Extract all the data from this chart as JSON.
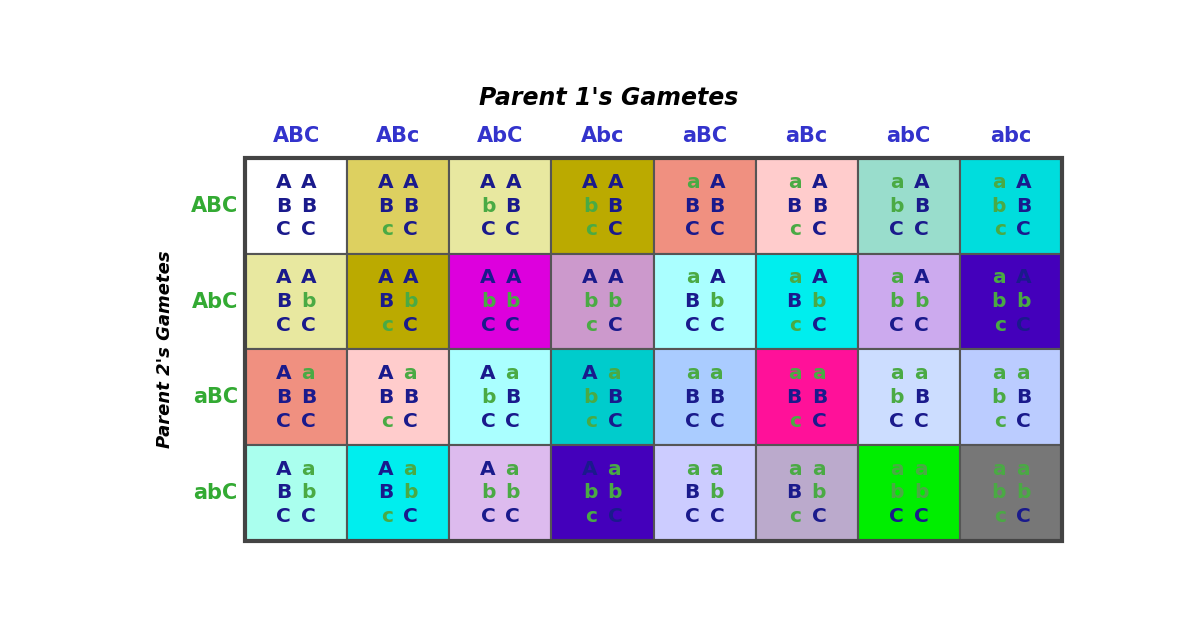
{
  "title": "Parent 1's Gametes",
  "ylabel": "Parent 2's Gametes",
  "col_labels": [
    "ABC",
    "ABc",
    "AbC",
    "Abc",
    "aBC",
    "aBc",
    "abC",
    "abc"
  ],
  "row_labels": [
    "ABC",
    "AbC",
    "aBC",
    "abC"
  ],
  "col_label_color": "#3333cc",
  "row_label_color": "#33aa33",
  "cell_bg_colors": [
    [
      "#ffffff",
      "#ddd060",
      "#e8e8a0",
      "#bbaa00",
      "#f09080",
      "#ffcccc",
      "#99ddcc",
      "#00dddd"
    ],
    [
      "#e8e8a0",
      "#bbaa00",
      "#dd00dd",
      "#cc99cc",
      "#aaffff",
      "#00eeee",
      "#ccaaee",
      "#4400bb"
    ],
    [
      "#f09080",
      "#ffcccc",
      "#aaffff",
      "#00cccc",
      "#aaccff",
      "#ff1199",
      "#ccddff",
      "#bbccff"
    ],
    [
      "#aaffee",
      "#00eeee",
      "#ddbbee",
      "#4400bb",
      "#ccccff",
      "#bbaacc",
      "#00ee00",
      "#777777"
    ]
  ],
  "cells": [
    [
      [
        [
          "A",
          "A"
        ],
        [
          "B",
          "B"
        ],
        [
          "C",
          "C"
        ]
      ],
      [
        [
          "A",
          "A"
        ],
        [
          "B",
          "B"
        ],
        [
          "c",
          "C"
        ]
      ],
      [
        [
          "A",
          "A"
        ],
        [
          "b",
          "B"
        ],
        [
          "C",
          "C"
        ]
      ],
      [
        [
          "A",
          "A"
        ],
        [
          "b",
          "B"
        ],
        [
          "c",
          "C"
        ]
      ],
      [
        [
          "a",
          "A"
        ],
        [
          "B",
          "B"
        ],
        [
          "C",
          "C"
        ]
      ],
      [
        [
          "a",
          "A"
        ],
        [
          "B",
          "B"
        ],
        [
          "c",
          "C"
        ]
      ],
      [
        [
          "a",
          "A"
        ],
        [
          "b",
          "B"
        ],
        [
          "C",
          "C"
        ]
      ],
      [
        [
          "a",
          "A"
        ],
        [
          "b",
          "B"
        ],
        [
          "c",
          "C"
        ]
      ]
    ],
    [
      [
        [
          "A",
          "A"
        ],
        [
          "B",
          "b"
        ],
        [
          "C",
          "C"
        ]
      ],
      [
        [
          "A",
          "A"
        ],
        [
          "B",
          "b"
        ],
        [
          "c",
          "C"
        ]
      ],
      [
        [
          "A",
          "A"
        ],
        [
          "b",
          "b"
        ],
        [
          "C",
          "C"
        ]
      ],
      [
        [
          "A",
          "A"
        ],
        [
          "b",
          "b"
        ],
        [
          "c",
          "C"
        ]
      ],
      [
        [
          "a",
          "A"
        ],
        [
          "B",
          "b"
        ],
        [
          "C",
          "C"
        ]
      ],
      [
        [
          "a",
          "A"
        ],
        [
          "B",
          "b"
        ],
        [
          "c",
          "C"
        ]
      ],
      [
        [
          "a",
          "A"
        ],
        [
          "b",
          "b"
        ],
        [
          "C",
          "C"
        ]
      ],
      [
        [
          "a",
          "A"
        ],
        [
          "b",
          "b"
        ],
        [
          "c",
          "C"
        ]
      ]
    ],
    [
      [
        [
          "A",
          "a"
        ],
        [
          "B",
          "B"
        ],
        [
          "C",
          "C"
        ]
      ],
      [
        [
          "A",
          "a"
        ],
        [
          "B",
          "B"
        ],
        [
          "c",
          "C"
        ]
      ],
      [
        [
          "A",
          "a"
        ],
        [
          "b",
          "B"
        ],
        [
          "C",
          "C"
        ]
      ],
      [
        [
          "A",
          "a"
        ],
        [
          "b",
          "B"
        ],
        [
          "c",
          "C"
        ]
      ],
      [
        [
          "a",
          "a"
        ],
        [
          "B",
          "B"
        ],
        [
          "C",
          "C"
        ]
      ],
      [
        [
          "a",
          "a"
        ],
        [
          "B",
          "B"
        ],
        [
          "c",
          "C"
        ]
      ],
      [
        [
          "a",
          "a"
        ],
        [
          "b",
          "B"
        ],
        [
          "C",
          "C"
        ]
      ],
      [
        [
          "a",
          "a"
        ],
        [
          "b",
          "B"
        ],
        [
          "c",
          "C"
        ]
      ]
    ],
    [
      [
        [
          "A",
          "a"
        ],
        [
          "B",
          "b"
        ],
        [
          "C",
          "C"
        ]
      ],
      [
        [
          "A",
          "a"
        ],
        [
          "B",
          "b"
        ],
        [
          "c",
          "C"
        ]
      ],
      [
        [
          "A",
          "a"
        ],
        [
          "b",
          "b"
        ],
        [
          "C",
          "C"
        ]
      ],
      [
        [
          "A",
          "a"
        ],
        [
          "b",
          "b"
        ],
        [
          "c",
          "C"
        ]
      ],
      [
        [
          "a",
          "a"
        ],
        [
          "B",
          "b"
        ],
        [
          "C",
          "C"
        ]
      ],
      [
        [
          "a",
          "a"
        ],
        [
          "B",
          "b"
        ],
        [
          "c",
          "C"
        ]
      ],
      [
        [
          "a",
          "a"
        ],
        [
          "b",
          "b"
        ],
        [
          "C",
          "C"
        ]
      ],
      [
        [
          "a",
          "a"
        ],
        [
          "b",
          "b"
        ],
        [
          "c",
          "C"
        ]
      ]
    ]
  ],
  "dominant_color": "#1a1a8c",
  "recessive_color": "#4aaa44",
  "background_color": "#ffffff"
}
